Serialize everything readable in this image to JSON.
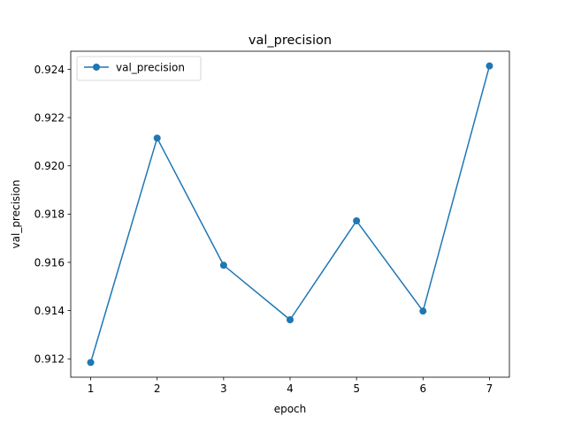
{
  "chart_data": {
    "type": "line",
    "title": "val_precision",
    "xlabel": "epoch",
    "ylabel": "val_precision",
    "x": [
      1,
      2,
      3,
      4,
      5,
      6,
      7
    ],
    "series": [
      {
        "name": "val_precision",
        "color": "#1f77b4",
        "marker": "circle",
        "values": [
          0.91185,
          0.92115,
          0.91588,
          0.91362,
          0.91772,
          0.91398,
          0.92414
        ]
      }
    ],
    "xticks": [
      1,
      2,
      3,
      4,
      5,
      6,
      7
    ],
    "xtick_labels": [
      "1",
      "2",
      "3",
      "4",
      "5",
      "6",
      "7"
    ],
    "yticks": [
      0.912,
      0.914,
      0.916,
      0.918,
      0.92,
      0.922,
      0.924
    ],
    "ytick_labels": [
      "0.912",
      "0.914",
      "0.916",
      "0.918",
      "0.920",
      "0.922",
      "0.924"
    ],
    "xlim": [
      0.7,
      7.3
    ],
    "ylim": [
      0.91124,
      0.92475
    ],
    "grid": false,
    "legend_position": "top-left"
  }
}
